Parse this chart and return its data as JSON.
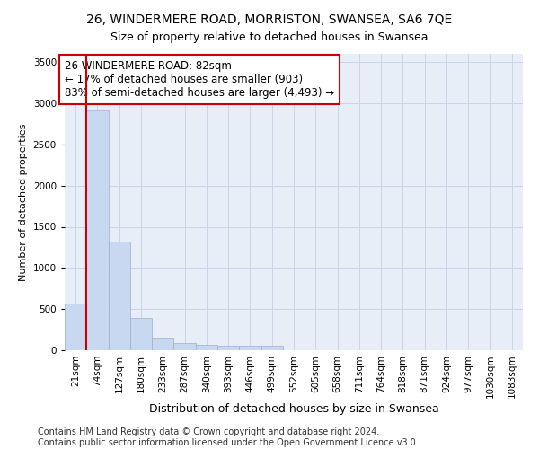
{
  "title": "26, WINDERMERE ROAD, MORRISTON, SWANSEA, SA6 7QE",
  "subtitle": "Size of property relative to detached houses in Swansea",
  "xlabel": "Distribution of detached houses by size in Swansea",
  "ylabel": "Number of detached properties",
  "categories": [
    "21sqm",
    "74sqm",
    "127sqm",
    "180sqm",
    "233sqm",
    "287sqm",
    "340sqm",
    "393sqm",
    "446sqm",
    "499sqm",
    "552sqm",
    "605sqm",
    "658sqm",
    "711sqm",
    "764sqm",
    "818sqm",
    "871sqm",
    "924sqm",
    "977sqm",
    "1030sqm",
    "1083sqm"
  ],
  "values": [
    565,
    2910,
    1320,
    390,
    155,
    90,
    65,
    55,
    50,
    55,
    0,
    0,
    0,
    0,
    0,
    0,
    0,
    0,
    0,
    0,
    0
  ],
  "bar_color": "#c8d8f0",
  "bar_edge_color": "#9ab0d0",
  "grid_color": "#c8d4e8",
  "background_color": "#ffffff",
  "plot_bg_color": "#e8eef8",
  "annotation_box_text": "26 WINDERMERE ROAD: 82sqm\n← 17% of detached houses are smaller (903)\n83% of semi-detached houses are larger (4,493) →",
  "annotation_box_color": "#ffffff",
  "annotation_box_edge_color": "#cc0000",
  "vline_color": "#cc0000",
  "vline_x": 0.5,
  "ylim": [
    0,
    3600
  ],
  "yticks": [
    0,
    500,
    1000,
    1500,
    2000,
    2500,
    3000,
    3500
  ],
  "footer_text": "Contains HM Land Registry data © Crown copyright and database right 2024.\nContains public sector information licensed under the Open Government Licence v3.0.",
  "title_fontsize": 10,
  "subtitle_fontsize": 9,
  "xlabel_fontsize": 9,
  "ylabel_fontsize": 8,
  "tick_fontsize": 7.5,
  "annotation_fontsize": 8.5,
  "footer_fontsize": 7
}
